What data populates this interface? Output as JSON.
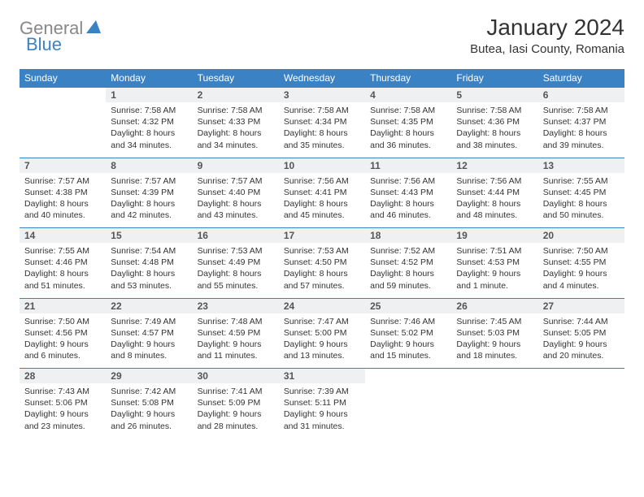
{
  "logo": {
    "text1": "General",
    "text2": "Blue"
  },
  "title": "January 2024",
  "location": "Butea, Iasi County, Romania",
  "colors": {
    "header_bg": "#3b82c4",
    "header_text": "#ffffff",
    "daynum_bg": "#eef0f2",
    "daynum_border": "#3b82c4",
    "body_text": "#333333",
    "logo_gray": "#888888",
    "logo_blue": "#3b82c4"
  },
  "weekdays": [
    "Sunday",
    "Monday",
    "Tuesday",
    "Wednesday",
    "Thursday",
    "Friday",
    "Saturday"
  ],
  "weeks": [
    {
      "days": [
        {
          "empty": true
        },
        {
          "num": "1",
          "sunrise": "Sunrise: 7:58 AM",
          "sunset": "Sunset: 4:32 PM",
          "daylight1": "Daylight: 8 hours",
          "daylight2": "and 34 minutes."
        },
        {
          "num": "2",
          "sunrise": "Sunrise: 7:58 AM",
          "sunset": "Sunset: 4:33 PM",
          "daylight1": "Daylight: 8 hours",
          "daylight2": "and 34 minutes."
        },
        {
          "num": "3",
          "sunrise": "Sunrise: 7:58 AM",
          "sunset": "Sunset: 4:34 PM",
          "daylight1": "Daylight: 8 hours",
          "daylight2": "and 35 minutes."
        },
        {
          "num": "4",
          "sunrise": "Sunrise: 7:58 AM",
          "sunset": "Sunset: 4:35 PM",
          "daylight1": "Daylight: 8 hours",
          "daylight2": "and 36 minutes."
        },
        {
          "num": "5",
          "sunrise": "Sunrise: 7:58 AM",
          "sunset": "Sunset: 4:36 PM",
          "daylight1": "Daylight: 8 hours",
          "daylight2": "and 38 minutes."
        },
        {
          "num": "6",
          "sunrise": "Sunrise: 7:58 AM",
          "sunset": "Sunset: 4:37 PM",
          "daylight1": "Daylight: 8 hours",
          "daylight2": "and 39 minutes."
        }
      ]
    },
    {
      "days": [
        {
          "num": "7",
          "sunrise": "Sunrise: 7:57 AM",
          "sunset": "Sunset: 4:38 PM",
          "daylight1": "Daylight: 8 hours",
          "daylight2": "and 40 minutes."
        },
        {
          "num": "8",
          "sunrise": "Sunrise: 7:57 AM",
          "sunset": "Sunset: 4:39 PM",
          "daylight1": "Daylight: 8 hours",
          "daylight2": "and 42 minutes."
        },
        {
          "num": "9",
          "sunrise": "Sunrise: 7:57 AM",
          "sunset": "Sunset: 4:40 PM",
          "daylight1": "Daylight: 8 hours",
          "daylight2": "and 43 minutes."
        },
        {
          "num": "10",
          "sunrise": "Sunrise: 7:56 AM",
          "sunset": "Sunset: 4:41 PM",
          "daylight1": "Daylight: 8 hours",
          "daylight2": "and 45 minutes."
        },
        {
          "num": "11",
          "sunrise": "Sunrise: 7:56 AM",
          "sunset": "Sunset: 4:43 PM",
          "daylight1": "Daylight: 8 hours",
          "daylight2": "and 46 minutes."
        },
        {
          "num": "12",
          "sunrise": "Sunrise: 7:56 AM",
          "sunset": "Sunset: 4:44 PM",
          "daylight1": "Daylight: 8 hours",
          "daylight2": "and 48 minutes."
        },
        {
          "num": "13",
          "sunrise": "Sunrise: 7:55 AM",
          "sunset": "Sunset: 4:45 PM",
          "daylight1": "Daylight: 8 hours",
          "daylight2": "and 50 minutes."
        }
      ]
    },
    {
      "days": [
        {
          "num": "14",
          "sunrise": "Sunrise: 7:55 AM",
          "sunset": "Sunset: 4:46 PM",
          "daylight1": "Daylight: 8 hours",
          "daylight2": "and 51 minutes."
        },
        {
          "num": "15",
          "sunrise": "Sunrise: 7:54 AM",
          "sunset": "Sunset: 4:48 PM",
          "daylight1": "Daylight: 8 hours",
          "daylight2": "and 53 minutes."
        },
        {
          "num": "16",
          "sunrise": "Sunrise: 7:53 AM",
          "sunset": "Sunset: 4:49 PM",
          "daylight1": "Daylight: 8 hours",
          "daylight2": "and 55 minutes."
        },
        {
          "num": "17",
          "sunrise": "Sunrise: 7:53 AM",
          "sunset": "Sunset: 4:50 PM",
          "daylight1": "Daylight: 8 hours",
          "daylight2": "and 57 minutes."
        },
        {
          "num": "18",
          "sunrise": "Sunrise: 7:52 AM",
          "sunset": "Sunset: 4:52 PM",
          "daylight1": "Daylight: 8 hours",
          "daylight2": "and 59 minutes."
        },
        {
          "num": "19",
          "sunrise": "Sunrise: 7:51 AM",
          "sunset": "Sunset: 4:53 PM",
          "daylight1": "Daylight: 9 hours",
          "daylight2": "and 1 minute."
        },
        {
          "num": "20",
          "sunrise": "Sunrise: 7:50 AM",
          "sunset": "Sunset: 4:55 PM",
          "daylight1": "Daylight: 9 hours",
          "daylight2": "and 4 minutes."
        }
      ]
    },
    {
      "days": [
        {
          "num": "21",
          "sunrise": "Sunrise: 7:50 AM",
          "sunset": "Sunset: 4:56 PM",
          "daylight1": "Daylight: 9 hours",
          "daylight2": "and 6 minutes."
        },
        {
          "num": "22",
          "sunrise": "Sunrise: 7:49 AM",
          "sunset": "Sunset: 4:57 PM",
          "daylight1": "Daylight: 9 hours",
          "daylight2": "and 8 minutes."
        },
        {
          "num": "23",
          "sunrise": "Sunrise: 7:48 AM",
          "sunset": "Sunset: 4:59 PM",
          "daylight1": "Daylight: 9 hours",
          "daylight2": "and 11 minutes."
        },
        {
          "num": "24",
          "sunrise": "Sunrise: 7:47 AM",
          "sunset": "Sunset: 5:00 PM",
          "daylight1": "Daylight: 9 hours",
          "daylight2": "and 13 minutes."
        },
        {
          "num": "25",
          "sunrise": "Sunrise: 7:46 AM",
          "sunset": "Sunset: 5:02 PM",
          "daylight1": "Daylight: 9 hours",
          "daylight2": "and 15 minutes."
        },
        {
          "num": "26",
          "sunrise": "Sunrise: 7:45 AM",
          "sunset": "Sunset: 5:03 PM",
          "daylight1": "Daylight: 9 hours",
          "daylight2": "and 18 minutes."
        },
        {
          "num": "27",
          "sunrise": "Sunrise: 7:44 AM",
          "sunset": "Sunset: 5:05 PM",
          "daylight1": "Daylight: 9 hours",
          "daylight2": "and 20 minutes."
        }
      ]
    },
    {
      "days": [
        {
          "num": "28",
          "sunrise": "Sunrise: 7:43 AM",
          "sunset": "Sunset: 5:06 PM",
          "daylight1": "Daylight: 9 hours",
          "daylight2": "and 23 minutes."
        },
        {
          "num": "29",
          "sunrise": "Sunrise: 7:42 AM",
          "sunset": "Sunset: 5:08 PM",
          "daylight1": "Daylight: 9 hours",
          "daylight2": "and 26 minutes."
        },
        {
          "num": "30",
          "sunrise": "Sunrise: 7:41 AM",
          "sunset": "Sunset: 5:09 PM",
          "daylight1": "Daylight: 9 hours",
          "daylight2": "and 28 minutes."
        },
        {
          "num": "31",
          "sunrise": "Sunrise: 7:39 AM",
          "sunset": "Sunset: 5:11 PM",
          "daylight1": "Daylight: 9 hours",
          "daylight2": "and 31 minutes."
        },
        {
          "empty": true
        },
        {
          "empty": true
        },
        {
          "empty": true
        }
      ]
    }
  ]
}
